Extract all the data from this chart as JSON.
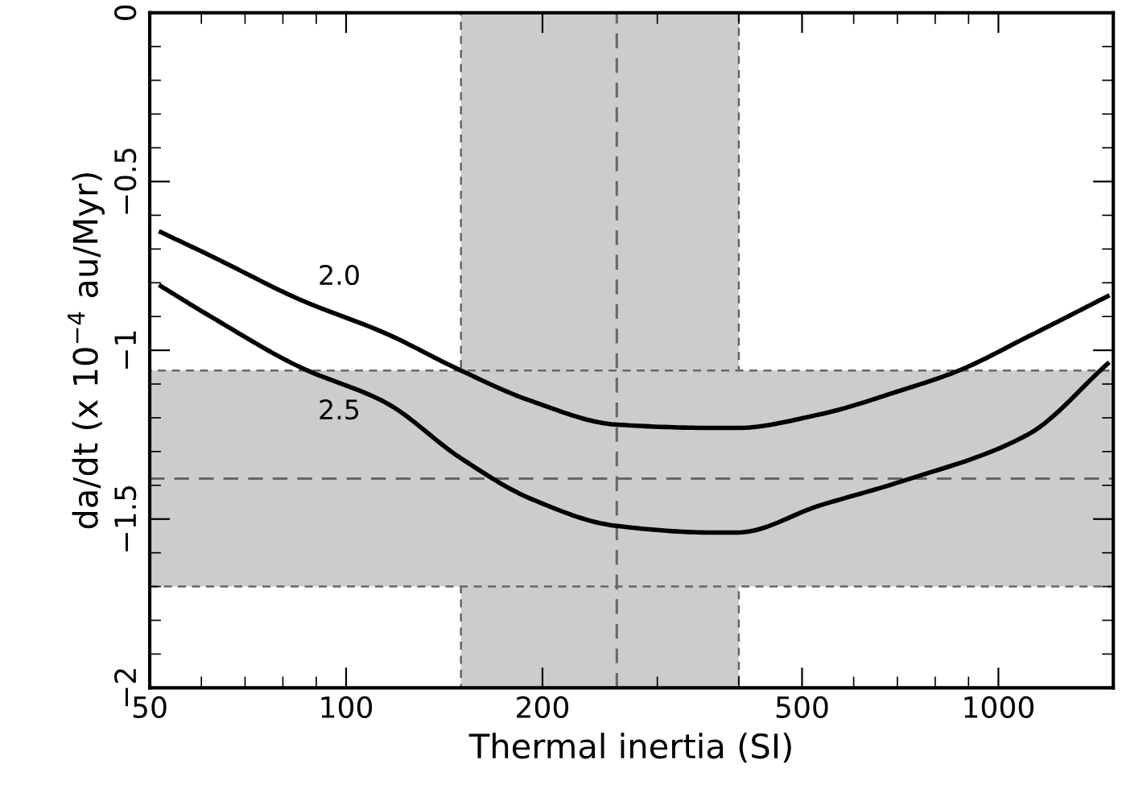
{
  "chart_data": {
    "type": "line",
    "xlabel": "Thermal inertia (SI)",
    "ylabel": "da/dt (x 10$^{−4}$ au/Myr)",
    "log": "x",
    "xlim": [
      50,
      1500
    ],
    "xticks": [
      50,
      100,
      200,
      500,
      1000
    ],
    "ylim": [
      -2,
      0
    ],
    "yticks": [
      {
        "value": 0,
        "label": "0"
      },
      {
        "value": -0.5,
        "label": "−0.5"
      },
      {
        "value": -1,
        "label": "−1"
      },
      {
        "value": -1.5,
        "label": "−1.5"
      },
      {
        "value": -2,
        "label": "−2"
      }
    ],
    "grid": false,
    "marker": "none",
    "line_style": "solid",
    "series": [
      {
        "name": "2.0",
        "color": "#000000",
        "x": [
          52,
          62,
          85,
          115,
          150,
          192,
          259,
          364,
          398,
          532,
          706,
          870,
          1109,
          1470
        ],
        "values": [
          -0.65,
          -0.72,
          -0.85,
          -0.95,
          -1.06,
          -1.15,
          -1.22,
          -1.23,
          -1.23,
          -1.19,
          -1.12,
          -1.06,
          -0.96,
          -0.84
        ]
      },
      {
        "name": "2.5",
        "color": "#000000",
        "x": [
          52,
          62,
          85,
          115,
          150,
          192,
          259,
          364,
          398,
          532,
          706,
          1109,
          1470
        ],
        "values": [
          -0.81,
          -0.9,
          -1.05,
          -1.155,
          -1.32,
          -1.44,
          -1.52,
          -1.54,
          -1.54,
          -1.46,
          -1.39,
          -1.25,
          -1.04
        ]
      }
    ],
    "bands": [
      {
        "axis": "x",
        "from": 150,
        "to": 400,
        "color": "#cccccc"
      },
      {
        "axis": "y",
        "from": -1.7,
        "to": -1.06,
        "color": "#cccccc"
      }
    ],
    "ref_lines": [
      {
        "axis": "x",
        "value": 260,
        "color": "#666666",
        "line_style": "dashed"
      },
      {
        "axis": "y",
        "value": -1.38,
        "color": "#666666",
        "line_style": "dashed"
      }
    ]
  }
}
